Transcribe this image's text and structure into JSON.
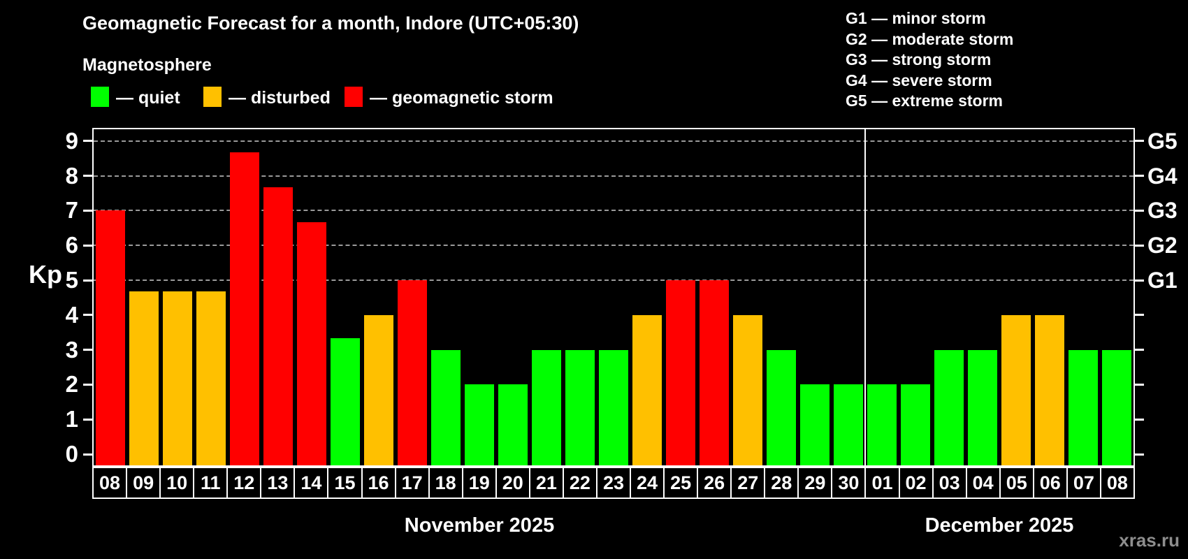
{
  "title": "Geomagnetic Forecast for a month, Indore (UTC+05:30)",
  "subtitle": "Magnetosphere",
  "legend": {
    "quiet": "— quiet",
    "disturbed": "— disturbed",
    "storm": "— geomagnetic storm"
  },
  "g_legend": [
    "G1 — minor storm",
    "G2 — moderate storm",
    "G3 — strong storm",
    "G4 — severe storm",
    "G5 — extreme storm"
  ],
  "watermark": "xras.ru",
  "colors": {
    "quiet": "#00ff00",
    "disturbed": "#ffc000",
    "storm": "#ff0000",
    "background": "#000000",
    "grid": "#9a9a9a",
    "text": "#ffffff",
    "watermark": "#8e8e8e"
  },
  "chart_data": {
    "type": "bar",
    "ylabel": "Kp",
    "ylim": [
      0,
      9.4
    ],
    "y_ticks": [
      0,
      1,
      2,
      3,
      4,
      5,
      6,
      7,
      8,
      9
    ],
    "grid": "dashed horizontal at Kp 5-9 only",
    "right_axis": [
      {
        "text": "G5",
        "kp": 9
      },
      {
        "text": "G4",
        "kp": 8
      },
      {
        "text": "G3",
        "kp": 7
      },
      {
        "text": "G2",
        "kp": 6
      },
      {
        "text": "G1",
        "kp": 5
      }
    ],
    "months": [
      {
        "label": "November 2025",
        "days": [
          {
            "day": "08",
            "kp": 7.0,
            "status": "storm"
          },
          {
            "day": "09",
            "kp": 4.67,
            "status": "disturbed"
          },
          {
            "day": "10",
            "kp": 4.67,
            "status": "disturbed"
          },
          {
            "day": "11",
            "kp": 4.67,
            "status": "disturbed"
          },
          {
            "day": "12",
            "kp": 8.67,
            "status": "storm"
          },
          {
            "day": "13",
            "kp": 7.67,
            "status": "storm"
          },
          {
            "day": "14",
            "kp": 6.67,
            "status": "storm"
          },
          {
            "day": "15",
            "kp": 3.33,
            "status": "quiet"
          },
          {
            "day": "16",
            "kp": 4.0,
            "status": "disturbed"
          },
          {
            "day": "17",
            "kp": 5.0,
            "status": "storm"
          },
          {
            "day": "18",
            "kp": 3.0,
            "status": "quiet"
          },
          {
            "day": "19",
            "kp": 2.0,
            "status": "quiet"
          },
          {
            "day": "20",
            "kp": 2.0,
            "status": "quiet"
          },
          {
            "day": "21",
            "kp": 3.0,
            "status": "quiet"
          },
          {
            "day": "22",
            "kp": 3.0,
            "status": "quiet"
          },
          {
            "day": "23",
            "kp": 3.0,
            "status": "quiet"
          },
          {
            "day": "24",
            "kp": 4.0,
            "status": "disturbed"
          },
          {
            "day": "25",
            "kp": 5.0,
            "status": "storm"
          },
          {
            "day": "26",
            "kp": 5.0,
            "status": "storm"
          },
          {
            "day": "27",
            "kp": 4.0,
            "status": "disturbed"
          },
          {
            "day": "28",
            "kp": 3.0,
            "status": "quiet"
          },
          {
            "day": "29",
            "kp": 2.0,
            "status": "quiet"
          },
          {
            "day": "30",
            "kp": 2.0,
            "status": "quiet"
          }
        ]
      },
      {
        "label": "December 2025",
        "days": [
          {
            "day": "01",
            "kp": 2.0,
            "status": "quiet"
          },
          {
            "day": "02",
            "kp": 2.0,
            "status": "quiet"
          },
          {
            "day": "03",
            "kp": 3.0,
            "status": "quiet"
          },
          {
            "day": "04",
            "kp": 3.0,
            "status": "quiet"
          },
          {
            "day": "05",
            "kp": 4.0,
            "status": "disturbed"
          },
          {
            "day": "06",
            "kp": 4.0,
            "status": "disturbed"
          },
          {
            "day": "07",
            "kp": 3.0,
            "status": "quiet"
          },
          {
            "day": "08",
            "kp": 3.0,
            "status": "quiet"
          }
        ]
      }
    ]
  }
}
